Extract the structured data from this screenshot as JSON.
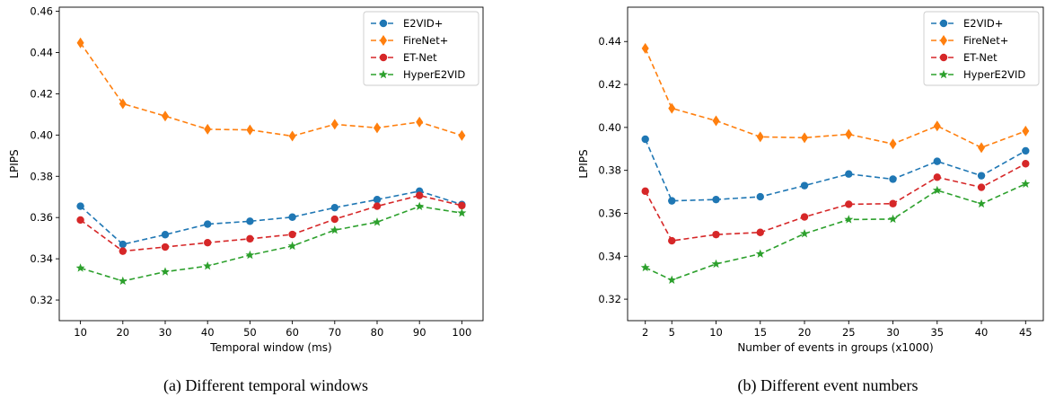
{
  "chart_data": [
    {
      "type": "line",
      "caption": "(a) Different temporal windows",
      "xlabel": "Temporal window (ms)",
      "ylabel": "LPIPS",
      "x": [
        10,
        20,
        30,
        40,
        50,
        60,
        70,
        80,
        90,
        100
      ],
      "x_tick_labels": [
        "10",
        "20",
        "30",
        "40",
        "50",
        "60",
        "70",
        "80",
        "90",
        "100"
      ],
      "xlim": [
        5,
        105
      ],
      "ylim": [
        0.31,
        0.462
      ],
      "y_ticks": [
        0.32,
        0.34,
        0.36,
        0.38,
        0.4,
        0.42,
        0.44,
        0.46
      ],
      "y_tick_labels": [
        "0.32",
        "0.34",
        "0.36",
        "0.38",
        "0.40",
        "0.42",
        "0.44",
        "0.46"
      ],
      "grid": false,
      "legend_position": "top-right",
      "series": [
        {
          "name": "E2VID+",
          "color": "#1f77b4",
          "marker": "circle",
          "values": [
            0.3655,
            0.347,
            0.3517,
            0.3568,
            0.3582,
            0.3602,
            0.3648,
            0.3687,
            0.3728,
            0.3663
          ]
        },
        {
          "name": "FireNet+",
          "color": "#ff7f0e",
          "marker": "diamond",
          "values": [
            0.4447,
            0.4152,
            0.4092,
            0.4028,
            0.4025,
            0.3995,
            0.4052,
            0.4035,
            0.4063,
            0.3998
          ]
        },
        {
          "name": "ET-Net",
          "color": "#d62728",
          "marker": "circle",
          "values": [
            0.3588,
            0.3437,
            0.3457,
            0.3478,
            0.3497,
            0.3518,
            0.3592,
            0.3655,
            0.3707,
            0.3658
          ]
        },
        {
          "name": "HyperE2VID",
          "color": "#2ca02c",
          "marker": "star",
          "values": [
            0.3355,
            0.3292,
            0.3337,
            0.3365,
            0.3418,
            0.3462,
            0.3539,
            0.3578,
            0.3654,
            0.3622
          ]
        }
      ]
    },
    {
      "type": "line",
      "caption": "(b) Different event numbers",
      "xlabel": "Number of events in groups (x1000)",
      "ylabel": "LPIPS",
      "x": [
        2,
        5,
        10,
        15,
        20,
        25,
        30,
        35,
        40,
        45
      ],
      "x_tick_labels": [
        "2",
        "5",
        "10",
        "15",
        "20",
        "25",
        "30",
        "35",
        "40",
        "45"
      ],
      "xlim": [
        0,
        47
      ],
      "ylim": [
        0.31,
        0.456
      ],
      "y_ticks": [
        0.32,
        0.34,
        0.36,
        0.38,
        0.4,
        0.42,
        0.44
      ],
      "y_tick_labels": [
        "0.32",
        "0.34",
        "0.36",
        "0.38",
        "0.40",
        "0.42",
        "0.44"
      ],
      "grid": false,
      "legend_position": "top-right",
      "series": [
        {
          "name": "E2VID+",
          "color": "#1f77b4",
          "marker": "circle",
          "values": [
            0.3945,
            0.3658,
            0.3664,
            0.3677,
            0.3729,
            0.3783,
            0.3759,
            0.3842,
            0.3775,
            0.3891
          ]
        },
        {
          "name": "FireNet+",
          "color": "#ff7f0e",
          "marker": "diamond",
          "values": [
            0.4368,
            0.4089,
            0.4031,
            0.3956,
            0.3952,
            0.3968,
            0.3923,
            0.4007,
            0.3906,
            0.3983
          ]
        },
        {
          "name": "ET-Net",
          "color": "#d62728",
          "marker": "circle",
          "values": [
            0.3703,
            0.3472,
            0.3501,
            0.3511,
            0.3583,
            0.3642,
            0.3645,
            0.3768,
            0.3721,
            0.3831
          ]
        },
        {
          "name": "HyperE2VID",
          "color": "#2ca02c",
          "marker": "star",
          "values": [
            0.3347,
            0.3289,
            0.3364,
            0.3411,
            0.3505,
            0.3571,
            0.3573,
            0.3707,
            0.3644,
            0.3737
          ]
        }
      ]
    }
  ]
}
